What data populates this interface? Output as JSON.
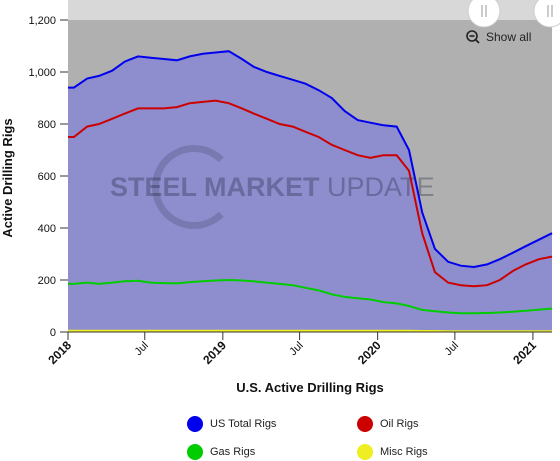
{
  "chart_data": {
    "type": "area",
    "title": "",
    "xlabel": "U.S. Active Drilling Rigs",
    "ylabel": "Active Drilling Rigs",
    "ylim": [
      0,
      1200
    ],
    "yticks": [
      "0",
      "200",
      "400",
      "600",
      "800",
      "1,000",
      "1,200"
    ],
    "xticks": [
      "2018",
      "Jul",
      "2019",
      "Jul",
      "2020",
      "Jul",
      "2021"
    ],
    "legend_position": "bottom",
    "grid": false,
    "x": [
      "2018-01",
      "2018-02",
      "2018-03",
      "2018-04",
      "2018-05",
      "2018-06",
      "2018-07",
      "2018-08",
      "2018-09",
      "2018-10",
      "2018-11",
      "2018-12",
      "2019-01",
      "2019-02",
      "2019-03",
      "2019-04",
      "2019-05",
      "2019-06",
      "2019-07",
      "2019-08",
      "2019-09",
      "2019-10",
      "2019-11",
      "2019-12",
      "2020-01",
      "2020-02",
      "2020-03",
      "2020-04",
      "2020-05",
      "2020-06",
      "2020-07",
      "2020-08",
      "2020-09",
      "2020-10",
      "2020-11",
      "2020-12",
      "2021-01",
      "2021-02"
    ],
    "series": [
      {
        "name": "US Total Rigs",
        "color": "#0000ee",
        "values": [
          940,
          975,
          985,
          1005,
          1040,
          1060,
          1055,
          1050,
          1045,
          1060,
          1070,
          1075,
          1080,
          1050,
          1020,
          1000,
          985,
          970,
          955,
          930,
          900,
          850,
          815,
          805,
          795,
          790,
          700,
          460,
          320,
          270,
          255,
          250,
          260,
          280,
          305,
          330,
          355,
          380
        ]
      },
      {
        "name": "Oil Rigs",
        "color": "#cc0000",
        "values": [
          750,
          790,
          800,
          820,
          840,
          860,
          860,
          860,
          865,
          880,
          885,
          890,
          880,
          860,
          840,
          820,
          800,
          790,
          770,
          750,
          720,
          700,
          680,
          670,
          680,
          680,
          620,
          380,
          230,
          190,
          180,
          176,
          180,
          200,
          235,
          260,
          280,
          290
        ]
      },
      {
        "name": "Gas Rigs",
        "color": "#00cc00",
        "values": [
          185,
          190,
          185,
          190,
          195,
          197,
          190,
          188,
          187,
          192,
          195,
          198,
          200,
          198,
          195,
          190,
          185,
          180,
          170,
          160,
          145,
          135,
          130,
          125,
          115,
          110,
          100,
          85,
          80,
          75,
          72,
          72,
          73,
          75,
          78,
          82,
          86,
          90
        ]
      },
      {
        "name": "Misc Rigs",
        "color": "#eeee22",
        "values": [
          5,
          5,
          5,
          5,
          5,
          5,
          5,
          5,
          5,
          5,
          5,
          5,
          5,
          5,
          5,
          5,
          5,
          5,
          5,
          5,
          5,
          5,
          5,
          5,
          5,
          5,
          5,
          4,
          4,
          3,
          3,
          3,
          3,
          3,
          3,
          3,
          3,
          3
        ]
      }
    ]
  },
  "controls": {
    "show_all_label": "Show all"
  },
  "watermark": {
    "bold": "STEEL MARKET ",
    "light": "UPDATE"
  },
  "colors": {
    "plot_background": "#b0b0b0",
    "area_fill": "#8e8ecf",
    "scrollbar": "#d8d8d8"
  }
}
